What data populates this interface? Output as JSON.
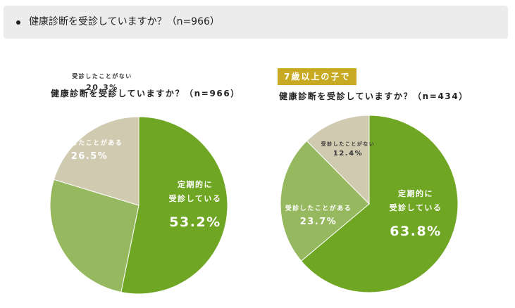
{
  "question": {
    "text": "健康診断を受診していますか？（n=966）"
  },
  "charts": {
    "left": {
      "title": "健康診断を受診していますか？（n=966）"
    },
    "right": {
      "tag": "7歳以上の子で",
      "title": "健康診断を受診していますか？（n=434）"
    }
  },
  "colors": {
    "regular": "#6fa623",
    "received": "#96b960",
    "never": "#cfcab0",
    "tag": "#c8aa22"
  },
  "chart_data": [
    {
      "type": "pie",
      "title": "健康診断を受診していますか？（n=966）",
      "slices": [
        {
          "label": [
            "定期的に",
            "受診している"
          ],
          "value": 53.2,
          "display": "53.2%",
          "color": "#6fa623"
        },
        {
          "label": [
            "受診したことがある"
          ],
          "value": 26.5,
          "display": "26.5%",
          "color": "#96b960"
        },
        {
          "label": [
            "受診したことがない"
          ],
          "value": 20.3,
          "display": "20.3%",
          "color": "#cfcab0"
        }
      ]
    },
    {
      "type": "pie",
      "title": "健康診断を受診していますか？（n=434）",
      "subtitle": "7歳以上の子で",
      "slices": [
        {
          "label": [
            "定期的に",
            "受診している"
          ],
          "value": 63.8,
          "display": "63.8%",
          "color": "#6fa623"
        },
        {
          "label": [
            "受診したことがある"
          ],
          "value": 23.7,
          "display": "23.7%",
          "color": "#96b960"
        },
        {
          "label": [
            "受診したことがない"
          ],
          "value": 12.4,
          "display": "12.4%",
          "color": "#cfcab0"
        }
      ]
    }
  ]
}
